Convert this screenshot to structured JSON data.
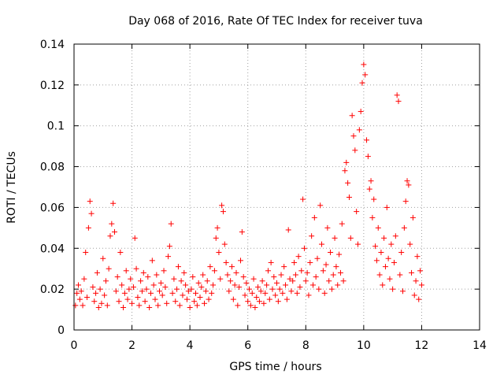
{
  "chart_data": {
    "type": "scatter",
    "title": "Day 068 of 2016, Rate Of TEC Index for receiver tuva",
    "xlabel": "GPS time / hours",
    "ylabel": "ROTI / TECUs",
    "xlim": [
      0,
      14
    ],
    "ylim": [
      0,
      0.14
    ],
    "xticks": [
      0,
      2,
      4,
      6,
      8,
      10,
      12,
      14
    ],
    "yticks": [
      0,
      0.02,
      0.04,
      0.06,
      0.08,
      0.1,
      0.12,
      0.14
    ],
    "xtick_labels": [
      "0",
      "2",
      "4",
      "6",
      "8",
      "10",
      "12",
      "14"
    ],
    "ytick_labels": [
      "0",
      "0.02",
      "0.04",
      "0.06",
      "0.08",
      "0.1",
      "0.12",
      "0.14"
    ],
    "grid": true,
    "marker": "+",
    "color": "#ff0000",
    "series": [
      {
        "name": "ROTI",
        "points": [
          [
            0.05,
            0.012
          ],
          [
            0.1,
            0.018
          ],
          [
            0.15,
            0.022
          ],
          [
            0.2,
            0.015
          ],
          [
            0.25,
            0.019
          ],
          [
            0.3,
            0.012
          ],
          [
            0.35,
            0.025
          ],
          [
            0.4,
            0.038
          ],
          [
            0.45,
            0.016
          ],
          [
            0.5,
            0.05
          ],
          [
            0.55,
            0.063
          ],
          [
            0.6,
            0.057
          ],
          [
            0.65,
            0.021
          ],
          [
            0.7,
            0.014
          ],
          [
            0.75,
            0.018
          ],
          [
            0.8,
            0.028
          ],
          [
            0.85,
            0.011
          ],
          [
            0.9,
            0.02
          ],
          [
            0.95,
            0.013
          ],
          [
            1.0,
            0.035
          ],
          [
            1.05,
            0.017
          ],
          [
            1.1,
            0.024
          ],
          [
            1.15,
            0.012
          ],
          [
            1.2,
            0.03
          ],
          [
            1.25,
            0.046
          ],
          [
            1.3,
            0.052
          ],
          [
            1.35,
            0.062
          ],
          [
            1.4,
            0.048
          ],
          [
            1.45,
            0.019
          ],
          [
            1.5,
            0.026
          ],
          [
            1.55,
            0.014
          ],
          [
            1.6,
            0.038
          ],
          [
            1.65,
            0.022
          ],
          [
            1.7,
            0.011
          ],
          [
            1.75,
            0.018
          ],
          [
            1.8,
            0.029
          ],
          [
            1.85,
            0.015
          ],
          [
            1.9,
            0.02
          ],
          [
            1.95,
            0.025
          ],
          [
            2.0,
            0.013
          ],
          [
            2.05,
            0.021
          ],
          [
            2.1,
            0.045
          ],
          [
            2.15,
            0.03
          ],
          [
            2.2,
            0.016
          ],
          [
            2.25,
            0.012
          ],
          [
            2.3,
            0.024
          ],
          [
            2.35,
            0.019
          ],
          [
            2.4,
            0.028
          ],
          [
            2.45,
            0.014
          ],
          [
            2.5,
            0.02
          ],
          [
            2.55,
            0.026
          ],
          [
            2.6,
            0.011
          ],
          [
            2.65,
            0.018
          ],
          [
            2.7,
            0.034
          ],
          [
            2.75,
            0.022
          ],
          [
            2.8,
            0.015
          ],
          [
            2.85,
            0.027
          ],
          [
            2.9,
            0.012
          ],
          [
            2.95,
            0.019
          ],
          [
            3.0,
            0.023
          ],
          [
            3.05,
            0.017
          ],
          [
            3.1,
            0.029
          ],
          [
            3.15,
            0.021
          ],
          [
            3.2,
            0.013
          ],
          [
            3.25,
            0.036
          ],
          [
            3.3,
            0.041
          ],
          [
            3.35,
            0.052
          ],
          [
            3.4,
            0.018
          ],
          [
            3.45,
            0.025
          ],
          [
            3.5,
            0.014
          ],
          [
            3.55,
            0.02
          ],
          [
            3.6,
            0.031
          ],
          [
            3.65,
            0.012
          ],
          [
            3.7,
            0.024
          ],
          [
            3.75,
            0.017
          ],
          [
            3.8,
            0.028
          ],
          [
            3.85,
            0.022
          ],
          [
            3.9,
            0.015
          ],
          [
            3.95,
            0.019
          ],
          [
            4.0,
            0.011
          ],
          [
            4.05,
            0.02
          ],
          [
            4.1,
            0.026
          ],
          [
            4.15,
            0.014
          ],
          [
            4.2,
            0.018
          ],
          [
            4.25,
            0.012
          ],
          [
            4.3,
            0.023
          ],
          [
            4.35,
            0.016
          ],
          [
            4.4,
            0.021
          ],
          [
            4.45,
            0.027
          ],
          [
            4.5,
            0.013
          ],
          [
            4.55,
            0.019
          ],
          [
            4.6,
            0.024
          ],
          [
            4.65,
            0.015
          ],
          [
            4.7,
            0.031
          ],
          [
            4.75,
            0.018
          ],
          [
            4.8,
            0.022
          ],
          [
            4.85,
            0.029
          ],
          [
            4.9,
            0.045
          ],
          [
            4.95,
            0.05
          ],
          [
            5.0,
            0.038
          ],
          [
            5.05,
            0.025
          ],
          [
            5.1,
            0.061
          ],
          [
            5.15,
            0.058
          ],
          [
            5.2,
            0.042
          ],
          [
            5.25,
            0.033
          ],
          [
            5.3,
            0.027
          ],
          [
            5.35,
            0.019
          ],
          [
            5.4,
            0.024
          ],
          [
            5.45,
            0.031
          ],
          [
            5.5,
            0.015
          ],
          [
            5.55,
            0.022
          ],
          [
            5.6,
            0.028
          ],
          [
            5.65,
            0.012
          ],
          [
            5.7,
            0.021
          ],
          [
            5.75,
            0.034
          ],
          [
            5.8,
            0.048
          ],
          [
            5.85,
            0.026
          ],
          [
            5.9,
            0.017
          ],
          [
            5.95,
            0.023
          ],
          [
            6.0,
            0.014
          ],
          [
            6.05,
            0.02
          ],
          [
            6.1,
            0.012
          ],
          [
            6.15,
            0.018
          ],
          [
            6.2,
            0.025
          ],
          [
            6.25,
            0.011
          ],
          [
            6.3,
            0.016
          ],
          [
            6.35,
            0.021
          ],
          [
            6.4,
            0.014
          ],
          [
            6.45,
            0.019
          ],
          [
            6.5,
            0.024
          ],
          [
            6.55,
            0.013
          ],
          [
            6.6,
            0.018
          ],
          [
            6.65,
            0.022
          ],
          [
            6.7,
            0.029
          ],
          [
            6.75,
            0.015
          ],
          [
            6.8,
            0.033
          ],
          [
            6.85,
            0.02
          ],
          [
            6.9,
            0.026
          ],
          [
            6.95,
            0.017
          ],
          [
            7.0,
            0.023
          ],
          [
            7.05,
            0.014
          ],
          [
            7.1,
            0.02
          ],
          [
            7.15,
            0.027
          ],
          [
            7.2,
            0.018
          ],
          [
            7.25,
            0.031
          ],
          [
            7.3,
            0.022
          ],
          [
            7.35,
            0.015
          ],
          [
            7.4,
            0.049
          ],
          [
            7.45,
            0.025
          ],
          [
            7.5,
            0.019
          ],
          [
            7.55,
            0.024
          ],
          [
            7.6,
            0.033
          ],
          [
            7.65,
            0.027
          ],
          [
            7.7,
            0.018
          ],
          [
            7.75,
            0.036
          ],
          [
            7.8,
            0.021
          ],
          [
            7.85,
            0.029
          ],
          [
            7.9,
            0.064
          ],
          [
            7.95,
            0.04
          ],
          [
            8.0,
            0.024
          ],
          [
            8.05,
            0.028
          ],
          [
            8.1,
            0.017
          ],
          [
            8.15,
            0.033
          ],
          [
            8.2,
            0.046
          ],
          [
            8.25,
            0.022
          ],
          [
            8.3,
            0.055
          ],
          [
            8.35,
            0.026
          ],
          [
            8.4,
            0.035
          ],
          [
            8.45,
            0.02
          ],
          [
            8.5,
            0.061
          ],
          [
            8.55,
            0.042
          ],
          [
            8.6,
            0.029
          ],
          [
            8.65,
            0.018
          ],
          [
            8.7,
            0.032
          ],
          [
            8.75,
            0.05
          ],
          [
            8.8,
            0.024
          ],
          [
            8.85,
            0.038
          ],
          [
            8.9,
            0.02
          ],
          [
            8.95,
            0.027
          ],
          [
            9.0,
            0.045
          ],
          [
            9.05,
            0.031
          ],
          [
            9.1,
            0.022
          ],
          [
            9.15,
            0.037
          ],
          [
            9.2,
            0.028
          ],
          [
            9.25,
            0.052
          ],
          [
            9.3,
            0.024
          ],
          [
            9.35,
            0.078
          ],
          [
            9.4,
            0.082
          ],
          [
            9.45,
            0.072
          ],
          [
            9.5,
            0.065
          ],
          [
            9.55,
            0.045
          ],
          [
            9.6,
            0.105
          ],
          [
            9.65,
            0.095
          ],
          [
            9.7,
            0.088
          ],
          [
            9.75,
            0.058
          ],
          [
            9.8,
            0.042
          ],
          [
            9.85,
            0.098
          ],
          [
            9.9,
            0.107
          ],
          [
            9.95,
            0.121
          ],
          [
            10.0,
            0.13
          ],
          [
            10.05,
            0.125
          ],
          [
            10.1,
            0.093
          ],
          [
            10.15,
            0.085
          ],
          [
            10.2,
            0.069
          ],
          [
            10.25,
            0.073
          ],
          [
            10.3,
            0.055
          ],
          [
            10.35,
            0.064
          ],
          [
            10.4,
            0.041
          ],
          [
            10.45,
            0.034
          ],
          [
            10.5,
            0.05
          ],
          [
            10.55,
            0.027
          ],
          [
            10.6,
            0.038
          ],
          [
            10.65,
            0.022
          ],
          [
            10.7,
            0.045
          ],
          [
            10.75,
            0.031
          ],
          [
            10.8,
            0.06
          ],
          [
            10.85,
            0.035
          ],
          [
            10.9,
            0.025
          ],
          [
            10.95,
            0.042
          ],
          [
            11.0,
            0.02
          ],
          [
            11.05,
            0.033
          ],
          [
            11.1,
            0.046
          ],
          [
            11.15,
            0.115
          ],
          [
            11.2,
            0.112
          ],
          [
            11.25,
            0.027
          ],
          [
            11.3,
            0.038
          ],
          [
            11.35,
            0.019
          ],
          [
            11.4,
            0.05
          ],
          [
            11.45,
            0.063
          ],
          [
            11.5,
            0.073
          ],
          [
            11.55,
            0.071
          ],
          [
            11.6,
            0.042
          ],
          [
            11.65,
            0.028
          ],
          [
            11.7,
            0.055
          ],
          [
            11.75,
            0.017
          ],
          [
            11.8,
            0.024
          ],
          [
            11.85,
            0.036
          ],
          [
            11.9,
            0.015
          ],
          [
            11.95,
            0.029
          ],
          [
            12.0,
            0.022
          ]
        ]
      }
    ]
  }
}
